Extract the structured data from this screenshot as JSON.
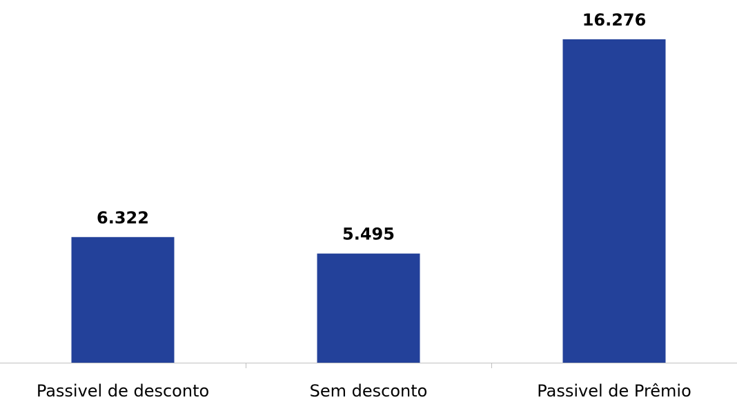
{
  "chart_data": {
    "type": "bar",
    "categories": [
      "Passivel de desconto",
      "Sem desconto",
      "Passivel de Prêmio"
    ],
    "values": [
      6322,
      5495,
      16276
    ],
    "value_labels": [
      "6.322",
      "5.495",
      "16.276"
    ],
    "title": "",
    "xlabel": "",
    "ylabel": "",
    "ylim": [
      0,
      17500
    ],
    "grid": false,
    "legend": "none",
    "colors": {
      "bar": "#23419A",
      "axis": "#BFBFBF",
      "text": "#000000"
    }
  }
}
